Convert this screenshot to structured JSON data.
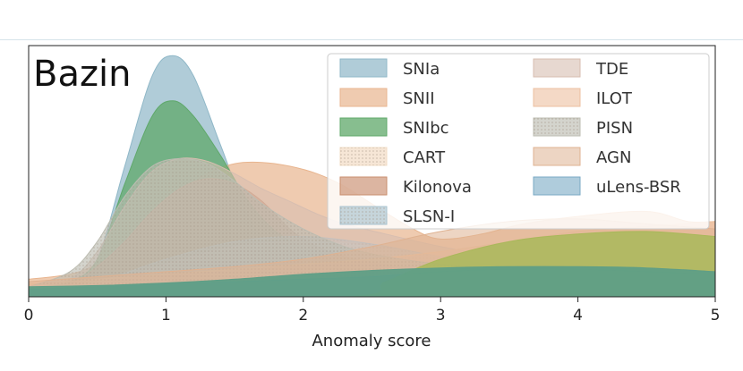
{
  "chart_data": {
    "type": "area",
    "title": "Bazin",
    "xlabel": "Anomaly score",
    "ylabel": "",
    "xlim": [
      0,
      5
    ],
    "ylim": [
      0,
      1.0
    ],
    "xticks": [
      0,
      1,
      2,
      3,
      4,
      5
    ],
    "grid": false,
    "legend_placement": "top-right",
    "legend_columns": 2,
    "series": [
      {
        "name": "SNIa",
        "color": "#8fb7c7",
        "hatch": "none",
        "opacity": 0.7,
        "x": [
          0,
          0.3,
          0.5,
          0.7,
          0.9,
          1.05,
          1.2,
          1.4,
          1.6,
          1.8,
          2.0,
          2.3,
          2.6,
          3.0,
          3.5,
          4.0,
          4.5,
          5.0
        ],
        "y": [
          0.02,
          0.05,
          0.15,
          0.52,
          0.88,
          0.96,
          0.88,
          0.6,
          0.32,
          0.17,
          0.12,
          0.12,
          0.13,
          0.12,
          0.08,
          0.06,
          0.05,
          0.04
        ]
      },
      {
        "name": "SNII",
        "color": "#e8b58f",
        "hatch": "none",
        "opacity": 0.7,
        "x": [
          0,
          0.3,
          0.5,
          0.7,
          0.9,
          1.1,
          1.3,
          1.5,
          1.7,
          1.9,
          2.1,
          2.3,
          2.5,
          2.8,
          3.0,
          3.3,
          3.6,
          4.0,
          4.5,
          4.8,
          5.0
        ],
        "y": [
          0.07,
          0.09,
          0.13,
          0.2,
          0.32,
          0.42,
          0.49,
          0.53,
          0.535,
          0.52,
          0.49,
          0.44,
          0.37,
          0.27,
          0.23,
          0.25,
          0.29,
          0.32,
          0.34,
          0.3,
          0.3
        ]
      },
      {
        "name": "SNIbc",
        "color": "#5fa86a",
        "hatch": "none",
        "opacity": 0.75,
        "x": [
          0,
          0.3,
          0.5,
          0.7,
          0.9,
          1.05,
          1.2,
          1.4,
          1.6,
          1.8,
          2.0,
          2.2,
          2.5,
          3.0,
          3.5,
          4.0,
          4.5,
          5.0
        ],
        "y": [
          0.03,
          0.06,
          0.15,
          0.45,
          0.72,
          0.78,
          0.72,
          0.56,
          0.38,
          0.26,
          0.2,
          0.17,
          0.14,
          0.1,
          0.08,
          0.06,
          0.05,
          0.04
        ]
      },
      {
        "name": "CART",
        "color": "#f2dcc5",
        "hatch": "dots",
        "opacity": 0.7,
        "x": [
          0,
          0.5,
          1.0,
          1.5,
          2.0,
          2.5,
          3.0,
          3.5,
          4.0,
          4.5,
          5.0
        ],
        "y": [
          0.02,
          0.05,
          0.13,
          0.2,
          0.22,
          0.2,
          0.16,
          0.12,
          0.09,
          0.06,
          0.05
        ]
      },
      {
        "name": "Kilonova",
        "color": "#c98e6e",
        "hatch": "none",
        "opacity": 0.65,
        "x": [
          0,
          0.3,
          0.5,
          0.7,
          0.9,
          1.1,
          1.3,
          1.5,
          1.7,
          1.9,
          2.1,
          2.3,
          2.6,
          3.0,
          3.5,
          4.0,
          4.5,
          5.0
        ],
        "y": [
          0.02,
          0.05,
          0.12,
          0.22,
          0.34,
          0.43,
          0.47,
          0.45,
          0.38,
          0.27,
          0.2,
          0.16,
          0.13,
          0.11,
          0.09,
          0.07,
          0.05,
          0.04
        ]
      },
      {
        "name": "SLSN-I",
        "color": "#a9c3cf",
        "hatch": "dots",
        "opacity": 0.65,
        "x": [
          0,
          0.5,
          1.0,
          1.5,
          2.0,
          2.5,
          3.0,
          3.5,
          4.0,
          4.5,
          5.0
        ],
        "y": [
          0.02,
          0.06,
          0.15,
          0.22,
          0.24,
          0.21,
          0.16,
          0.12,
          0.09,
          0.06,
          0.04
        ]
      },
      {
        "name": "TDE",
        "color": "#d7beb0",
        "hatch": "none",
        "opacity": 0.6,
        "x": [
          0,
          0.3,
          0.5,
          0.7,
          0.9,
          1.1,
          1.3,
          1.5,
          1.7,
          1.9,
          2.1,
          2.3,
          2.6,
          3.0,
          3.5,
          4.0,
          4.5,
          5.0
        ],
        "y": [
          0.03,
          0.07,
          0.18,
          0.36,
          0.5,
          0.55,
          0.54,
          0.49,
          0.43,
          0.38,
          0.33,
          0.29,
          0.25,
          0.2,
          0.15,
          0.1,
          0.07,
          0.05
        ]
      },
      {
        "name": "ILOT",
        "color": "#ecc0a0",
        "hatch": "none",
        "opacity": 0.6,
        "x": [
          0,
          0.5,
          1.0,
          1.5,
          2.0,
          2.5,
          3.0,
          3.5,
          4.0,
          4.5,
          5.0
        ],
        "y": [
          0.05,
          0.07,
          0.09,
          0.11,
          0.13,
          0.15,
          0.18,
          0.22,
          0.26,
          0.28,
          0.3
        ]
      },
      {
        "name": "PISN",
        "color": "#bdbdb2",
        "hatch": "dots",
        "opacity": 0.65,
        "x": [
          0,
          0.3,
          0.5,
          0.7,
          0.9,
          1.1,
          1.3,
          1.5,
          1.7,
          2.0,
          2.3,
          2.6,
          3.0,
          3.5,
          4.0,
          4.5,
          5.0
        ],
        "y": [
          0.04,
          0.1,
          0.22,
          0.4,
          0.52,
          0.55,
          0.53,
          0.46,
          0.37,
          0.27,
          0.2,
          0.16,
          0.13,
          0.11,
          0.09,
          0.08,
          0.07
        ]
      },
      {
        "name": "AGN",
        "color": "#dfb291",
        "hatch": "none",
        "opacity": 0.55,
        "x": [
          0,
          0.5,
          1.0,
          1.5,
          2.0,
          2.5,
          3.0,
          3.5,
          4.0,
          4.5,
          5.0
        ],
        "y": [
          0.06,
          0.08,
          0.1,
          0.12,
          0.15,
          0.2,
          0.26,
          0.3,
          0.31,
          0.29,
          0.27
        ]
      },
      {
        "name": "uLens-BSR",
        "color": "#79aac4",
        "hatch": "none",
        "opacity": 0.6,
        "x": [
          0,
          0.5,
          1.0,
          1.5,
          2.0,
          2.5,
          3.0,
          3.5,
          4.0,
          4.5,
          5.0
        ],
        "y": [
          0.03,
          0.04,
          0.05,
          0.06,
          0.07,
          0.08,
          0.1,
          0.11,
          0.11,
          0.1,
          0.09
        ]
      },
      {
        "name": "green-tail",
        "color": "#a9b85a",
        "hatch": "none",
        "opacity": 0.85,
        "legend": false,
        "x": [
          0,
          2.3,
          2.6,
          3.0,
          3.5,
          4.0,
          4.5,
          5.0
        ],
        "y": [
          0.0,
          0.0,
          0.06,
          0.15,
          0.22,
          0.25,
          0.26,
          0.24
        ]
      },
      {
        "name": "green-base",
        "color": "#5f9e86",
        "hatch": "none",
        "opacity": 0.95,
        "legend": false,
        "x": [
          0,
          0.5,
          1.0,
          1.5,
          2.0,
          2.5,
          3.0,
          3.5,
          4.0,
          4.5,
          5.0
        ],
        "y": [
          0.04,
          0.045,
          0.055,
          0.07,
          0.09,
          0.105,
          0.115,
          0.12,
          0.12,
          0.115,
          0.1
        ]
      }
    ]
  }
}
